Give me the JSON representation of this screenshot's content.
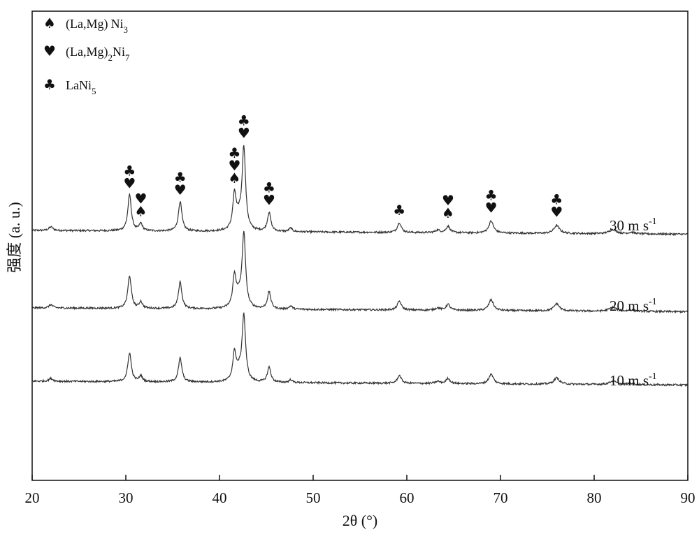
{
  "chart_data": {
    "type": "line",
    "xlabel": "2θ (°)",
    "ylabel": "强度 (a. u.)",
    "xlim": [
      20,
      90
    ],
    "x_ticks": [
      20,
      30,
      40,
      50,
      60,
      70,
      80,
      90
    ],
    "y_ticks_shown": false,
    "grid": false,
    "legend": {
      "placement": "top-left",
      "entries": [
        {
          "symbol": "♠",
          "phase": "(La,Mg)",
          "formula": "Ni",
          "sub": "3",
          "sub_after_paren": ""
        },
        {
          "symbol": "♥",
          "phase": "(La,Mg)",
          "formula": "Ni",
          "sub": "7",
          "sub_after_paren": "2"
        },
        {
          "symbol": "♣",
          "phase": "LaNi",
          "formula": "",
          "sub": "5",
          "sub_after_paren": ""
        }
      ]
    },
    "peaks": [
      {
        "x": 22.0,
        "h": 0.1,
        "w": 0.25
      },
      {
        "x": 30.4,
        "h": 1.0,
        "w": 0.22
      },
      {
        "x": 31.6,
        "h": 0.2,
        "w": 0.2
      },
      {
        "x": 35.8,
        "h": 0.82,
        "w": 0.22
      },
      {
        "x": 41.6,
        "h": 0.95,
        "w": 0.22
      },
      {
        "x": 42.1,
        "h": 0.3,
        "w": 0.35
      },
      {
        "x": 42.6,
        "h": 2.25,
        "w": 0.22
      },
      {
        "x": 45.3,
        "h": 0.52,
        "w": 0.22
      },
      {
        "x": 47.6,
        "h": 0.1,
        "w": 0.2
      },
      {
        "x": 59.2,
        "h": 0.27,
        "w": 0.25
      },
      {
        "x": 63.3,
        "h": 0.07,
        "w": 0.3
      },
      {
        "x": 64.4,
        "h": 0.18,
        "w": 0.25
      },
      {
        "x": 69.0,
        "h": 0.33,
        "w": 0.3
      },
      {
        "x": 76.0,
        "h": 0.22,
        "w": 0.35
      },
      {
        "x": 82.0,
        "h": 0.12,
        "w": 0.45
      },
      {
        "x": 84.0,
        "h": 0.04,
        "w": 0.4
      }
    ],
    "series": [
      {
        "name": "30 m s",
        "sup": "-1",
        "intensity_scale": 1.0,
        "baseline_offset": 2.0
      },
      {
        "name": "20 m s",
        "sup": "-1",
        "intensity_scale": 0.9,
        "baseline_offset": 1.0
      },
      {
        "name": "10 m s",
        "sup": "-1",
        "intensity_scale": 0.8,
        "baseline_offset": 0.0
      }
    ],
    "peak_markers": [
      {
        "x": 30.4,
        "symbols": [
          "♣",
          "♥"
        ]
      },
      {
        "x": 31.6,
        "symbols": [
          "♥",
          "♠"
        ]
      },
      {
        "x": 35.8,
        "symbols": [
          "♣",
          "♥"
        ]
      },
      {
        "x": 41.6,
        "symbols": [
          "♣",
          "♥",
          "♠"
        ]
      },
      {
        "x": 42.6,
        "symbols": [
          "♣",
          "♥"
        ]
      },
      {
        "x": 45.3,
        "symbols": [
          "♣",
          "♥"
        ]
      },
      {
        "x": 59.2,
        "symbols": [
          "♣"
        ]
      },
      {
        "x": 64.4,
        "symbols": [
          "♥",
          "♠"
        ]
      },
      {
        "x": 69.0,
        "symbols": [
          "♣",
          "♥"
        ]
      },
      {
        "x": 76.0,
        "symbols": [
          "♣",
          "♥"
        ]
      }
    ]
  }
}
